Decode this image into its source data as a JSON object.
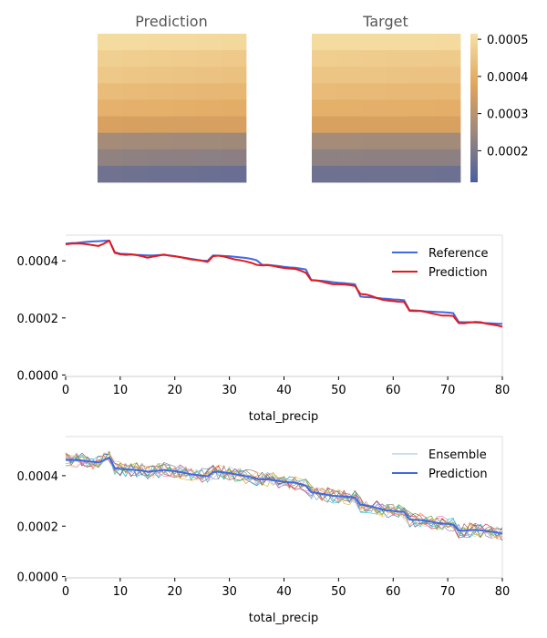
{
  "chart_data": [
    {
      "type": "heatmap",
      "title": "Prediction",
      "rows": [
        [
          0.000505,
          0.000503,
          0.000501,
          0.0005,
          0.000498,
          0.000497
        ],
        [
          0.000478,
          0.000474,
          0.00047,
          0.000468,
          0.000466,
          0.000462
        ],
        [
          0.000458,
          0.000455,
          0.000453,
          0.000448,
          0.000445,
          0.000442
        ],
        [
          0.00043,
          0.000428,
          0.000426,
          0.000424,
          0.000422,
          0.00042
        ],
        [
          0.000405,
          0.000404,
          0.000402,
          0.0004,
          0.000398,
          0.000396
        ],
        [
          0.00036,
          0.000358,
          0.000357,
          0.000355,
          0.000356,
          0.000358
        ],
        [
          0.000262,
          0.00026,
          0.000258,
          0.000256,
          0.000255,
          0.000254
        ],
        [
          0.000228,
          0.000226,
          0.000224,
          0.000222,
          0.000221,
          0.00022
        ],
        [
          0.000178,
          0.000176,
          0.000172,
          0.00017,
          0.000168,
          0.000165
        ]
      ]
    },
    {
      "type": "heatmap",
      "title": "Target",
      "rows": [
        [
          0.000505,
          0.000505,
          0.000504,
          0.000503,
          0.000503,
          0.000502
        ],
        [
          0.000472,
          0.00047,
          0.000468,
          0.000466,
          0.000465,
          0.000464
        ],
        [
          0.000452,
          0.00045,
          0.000449,
          0.000447,
          0.000446,
          0.000445
        ],
        [
          0.000428,
          0.000427,
          0.000426,
          0.000425,
          0.000424,
          0.000423
        ],
        [
          0.000402,
          0.000402,
          0.000401,
          0.0004,
          0.0004,
          0.000399
        ],
        [
          0.000362,
          0.000362,
          0.000361,
          0.000361,
          0.00036,
          0.00036
        ],
        [
          0.000262,
          0.000262,
          0.000261,
          0.000261,
          0.00026,
          0.00026
        ],
        [
          0.000225,
          0.000225,
          0.000224,
          0.000224,
          0.000223,
          0.000223
        ],
        [
          0.000175,
          0.000174,
          0.000174,
          0.000173,
          0.000173,
          0.000172
        ]
      ]
    },
    {
      "type": "colorbar",
      "range": [
        0.000115,
        0.000515
      ],
      "ticks": [
        "0.0005",
        "0.0004",
        "0.0003",
        "0.0002"
      ],
      "tick_values": [
        0.0005,
        0.0004,
        0.0003,
        0.0002
      ],
      "colors": [
        "#4a5fa0",
        "#a08a7a",
        "#e0a45c",
        "#f6e0a6"
      ]
    },
    {
      "type": "line",
      "xlabel": "total_precip",
      "xlim": [
        0,
        80
      ],
      "ylim": [
        -5e-06,
        0.00049
      ],
      "xticks": [
        "0",
        "10",
        "20",
        "30",
        "40",
        "50",
        "60",
        "70",
        "80"
      ],
      "yticks": [
        "0.0000",
        "0.0002",
        "0.0004"
      ],
      "legend": "top-right",
      "series": [
        {
          "name": "Reference",
          "color": "#4169e1",
          "values": [
            0.00046,
            0.000462,
            0.000463,
            0.000465,
            0.000467,
            0.000468,
            0.000469,
            0.00047,
            0.000471,
            0.00043,
            0.000425,
            0.000424,
            0.000423,
            0.000421,
            0.00042,
            0.000419,
            0.000419,
            0.00042,
            0.000421,
            0.000419,
            0.000416,
            0.000413,
            0.00041,
            0.000407,
            0.000404,
            0.000401,
            0.0004,
            0.000419,
            0.000418,
            0.000417,
            0.000416,
            0.000414,
            0.000412,
            0.00041,
            0.000407,
            0.000402,
            0.000386,
            0.000386,
            0.000384,
            0.000382,
            0.000379,
            0.000377,
            0.000376,
            0.000373,
            0.00037,
            0.000333,
            0.000331,
            0.00033,
            0.000328,
            0.000325,
            0.000323,
            0.000322,
            0.00032,
            0.000318,
            0.000275,
            0.000273,
            0.000272,
            0.00027,
            0.000268,
            0.000267,
            0.000265,
            0.000264,
            0.000262,
            0.000227,
            0.000226,
            0.000225,
            0.000223,
            0.000222,
            0.000221,
            0.00022,
            0.000219,
            0.000217,
            0.000186,
            0.000185,
            0.000185,
            0.000184,
            0.000183,
            0.000182,
            0.000181,
            0.00018,
            0.000179
          ]
        },
        {
          "name": "Prediction",
          "color": "#e31a1c",
          "values": [
            0.000458,
            0.00046,
            0.000461,
            0.00046,
            0.000458,
            0.000455,
            0.000452,
            0.00046,
            0.000471,
            0.000428,
            0.000423,
            0.000421,
            0.000422,
            0.00042,
            0.000416,
            0.000411,
            0.000415,
            0.000418,
            0.000422,
            0.000418,
            0.000416,
            0.000413,
            0.000409,
            0.000405,
            0.000403,
            0.0004,
            0.000396,
            0.000416,
            0.000418,
            0.000415,
            0.00041,
            0.000405,
            0.000402,
            0.000398,
            0.000393,
            0.000386,
            0.000384,
            0.000385,
            0.000382,
            0.000378,
            0.000375,
            0.000373,
            0.000372,
            0.000366,
            0.000358,
            0.000332,
            0.000331,
            0.000327,
            0.000322,
            0.000318,
            0.000318,
            0.000317,
            0.000315,
            0.000312,
            0.000284,
            0.000282,
            0.000277,
            0.00027,
            0.000264,
            0.000261,
            0.000259,
            0.000257,
            0.000256,
            0.000225,
            0.000224,
            0.000224,
            0.000221,
            0.000216,
            0.000212,
            0.000208,
            0.000208,
            0.000207,
            0.000182,
            0.000181,
            0.000184,
            0.000186,
            0.000185,
            0.00018,
            0.000177,
            0.000174,
            0.000169
          ]
        }
      ]
    },
    {
      "type": "line",
      "xlabel": "total_precip",
      "xlim": [
        0,
        80
      ],
      "ylim": [
        -5e-06,
        0.000555
      ],
      "xticks": [
        "0",
        "10",
        "20",
        "30",
        "40",
        "50",
        "60",
        "70",
        "80"
      ],
      "yticks": [
        "0.0000",
        "0.0002",
        "0.0004"
      ],
      "legend": "top-right",
      "series": [
        {
          "name": "Ensemble",
          "color": "#7aa6c8",
          "members": 12,
          "member_colors": [
            "#1f77b4",
            "#ff7f0e",
            "#2ca02c",
            "#d62728",
            "#9467bd",
            "#8c564b",
            "#e377c2",
            "#7f7f7f",
            "#bcbd22",
            "#17becf",
            "#aec7e8",
            "#ffbb78"
          ]
        },
        {
          "name": "Prediction",
          "color": "#4169e1",
          "values": [
            0.000462,
            0.000463,
            0.000462,
            0.00046,
            0.000458,
            0.000455,
            0.000452,
            0.000461,
            0.000471,
            0.00043,
            0.000427,
            0.000425,
            0.000424,
            0.000422,
            0.00042,
            0.000416,
            0.000418,
            0.00042,
            0.000423,
            0.00042,
            0.000418,
            0.000414,
            0.00041,
            0.000405,
            0.000403,
            0.0004,
            0.000398,
            0.000414,
            0.000416,
            0.000413,
            0.00041,
            0.000406,
            0.000402,
            0.000398,
            0.000394,
            0.000387,
            0.000385,
            0.000385,
            0.000382,
            0.000379,
            0.000376,
            0.000374,
            0.000372,
            0.000366,
            0.00036,
            0.000334,
            0.000332,
            0.000328,
            0.000324,
            0.00032,
            0.000319,
            0.000318,
            0.000316,
            0.000313,
            0.000285,
            0.000283,
            0.000278,
            0.000272,
            0.000266,
            0.000262,
            0.00026,
            0.000258,
            0.000257,
            0.000226,
            0.000225,
            0.000224,
            0.000221,
            0.000217,
            0.000213,
            0.00021,
            0.000209,
            0.000207,
            0.000183,
            0.000182,
            0.000184,
            0.000185,
            0.000184,
            0.00018,
            0.000178,
            0.000175,
            0.00017
          ]
        }
      ]
    }
  ]
}
